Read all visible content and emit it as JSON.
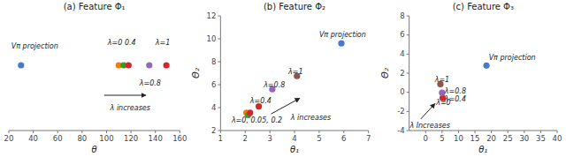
{
  "chart_data": [
    {
      "type": "scatter",
      "title": "(a) Feature Φ₁",
      "xlabel": "θ",
      "xlim": [
        20,
        160
      ],
      "ylim": [
        0.2,
        0.85
      ],
      "xticks": [
        20,
        40,
        60,
        80,
        100,
        120,
        140,
        160
      ],
      "tick_labels": "x",
      "x": [
        30,
        110,
        114,
        118,
        135,
        149
      ],
      "values": [
        0.57,
        0.57,
        0.57,
        0.57,
        0.57,
        0.57
      ],
      "colors": [
        "#4878cf",
        "#f97b00",
        "#2ca02c",
        "#d62728",
        "#9467bd",
        "#d62728"
      ],
      "annotations": [
        {
          "text": "Vπ projection",
          "x": 22,
          "y": 0.68
        },
        {
          "text": "λ=0  0.4",
          "x": 101,
          "y": 0.7
        },
        {
          "text": "λ=1",
          "x": 140,
          "y": 0.7
        },
        {
          "text": "λ=0.8",
          "x": 127,
          "y": 0.47
        },
        {
          "text": "λ increases",
          "x": 103,
          "y": 0.33,
          "arrow_from": [
            98,
            0.4
          ],
          "arrow_to": [
            132,
            0.4
          ]
        }
      ]
    },
    {
      "type": "scatter",
      "title": "(b) Feature Φ₂",
      "xlabel": "θ₁",
      "ylabel": "Θ₂",
      "xlim": [
        1,
        7
      ],
      "ylim": [
        2,
        12
      ],
      "xticks": [
        1,
        2,
        3,
        4,
        5,
        6,
        7
      ],
      "yticks": [
        2,
        4,
        6,
        8,
        10,
        12
      ],
      "x": [
        5.9,
        2.05,
        2.12,
        2.2,
        2.55,
        3.1,
        4.1
      ],
      "values": [
        9.6,
        3.55,
        3.35,
        3.55,
        4.1,
        5.6,
        6.75
      ],
      "colors": [
        "#4878cf",
        "#f97b00",
        "#2ca02c",
        "#d62728",
        "#d62728",
        "#9467bd",
        "#8c564b"
      ],
      "annotations": [
        {
          "text": "Vπ projection",
          "x": 5.0,
          "y": 10.35
        },
        {
          "text": "λ=0, 0.05, 0.2",
          "x": 1.45,
          "y": 2.9
        },
        {
          "text": "λ=0.4",
          "x": 2.2,
          "y": 4.55
        },
        {
          "text": "λ=0.8",
          "x": 2.75,
          "y": 5.95
        },
        {
          "text": "λ=1",
          "x": 3.75,
          "y": 7.15
        },
        {
          "text": "λ increases",
          "x": 3.85,
          "y": 3.1,
          "arrow_from": [
            3.05,
            3.45
          ],
          "arrow_to": [
            4.2,
            4.8
          ]
        }
      ]
    },
    {
      "type": "scatter",
      "title": "(c) Feature Φ₃",
      "xlabel": "θ₁",
      "ylabel": "Θ₂",
      "xlim": [
        -5,
        40
      ],
      "ylim": [
        -4,
        8
      ],
      "xticks": [
        0,
        5,
        10,
        15,
        20,
        25,
        30,
        35,
        40
      ],
      "yticks": [
        -4,
        -2,
        0,
        2,
        4,
        6,
        8
      ],
      "x": [
        18.5,
        5.2,
        5.0,
        4.5
      ],
      "values": [
        2.8,
        -0.6,
        -0.05,
        0.85
      ],
      "colors": [
        "#4878cf",
        "#d62728",
        "#9467bd",
        "#8c564b"
      ],
      "annotations": [
        {
          "text": "Vπ projection",
          "x": 19.2,
          "y": 3.6
        },
        {
          "text": "λ=1",
          "x": 2.8,
          "y": 1.3
        },
        {
          "text": "λ=0.8",
          "x": 5.8,
          "y": 0.15
        },
        {
          "text": "λ=0.4",
          "x": 5.8,
          "y": -0.7
        },
        {
          "text": "λ=0",
          "x": 3.2,
          "y": -1.1
        },
        {
          "text": "λ Increases",
          "x": -4.8,
          "y": -3.5,
          "arrow_from": [
            -1.5,
            -2.8
          ],
          "arrow_to": [
            2.8,
            -1.2
          ]
        }
      ]
    }
  ]
}
